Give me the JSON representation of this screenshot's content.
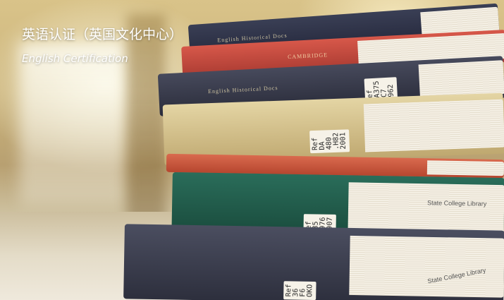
{
  "caption": {
    "title_zh": "英语认证（英国文化中心）",
    "title_en": "English Certification"
  },
  "labels": {
    "book3": "Ref\nDA375\n.C7\n1962",
    "book4": "Ref\nDA\n480\n.H82\n2001",
    "book6": "Ref\n435\n1976\n1907",
    "book7": "Ref\n36\nF6\nOKO"
  },
  "stamps": {
    "book6": "State College Library",
    "book7": "State College Library"
  },
  "embossing": {
    "book1": "English Historical Docs",
    "book2": "CAMBRIDGE",
    "book3": "English Historical Docs"
  },
  "colors": {
    "navy": "#2b2e3f",
    "red": "#c14a3d",
    "green": "#1f5a4a",
    "tan": "#d8c690",
    "slate": "#3a3d4e"
  }
}
